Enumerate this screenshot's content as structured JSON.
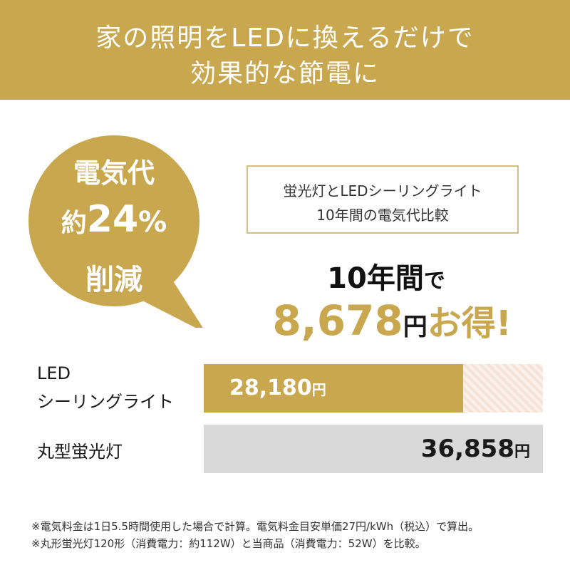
{
  "header": {
    "line1": "家の照明をLEDに換えるだけで",
    "line2": "効果的な節電に"
  },
  "badge": {
    "line1": "電気代",
    "line2_prefix": "約",
    "line2_number": "24",
    "line2_percent": "%",
    "line3": "削減"
  },
  "comparison": {
    "line1": "蛍光灯とLEDシーリングライト",
    "line2": "10年間の電気代比較"
  },
  "savings": {
    "period": "10年間",
    "particle": "で",
    "amount": "8,678",
    "currency": "円",
    "suffix": "お得!"
  },
  "chart_data": {
    "type": "bar",
    "categories": [
      "LED シーリングライト",
      "丸型蛍光灯"
    ],
    "values": [
      28180,
      36858
    ],
    "value_labels": [
      "28,180",
      "36,858"
    ],
    "unit": "円",
    "max": 36858
  },
  "bars": [
    {
      "label_line1": "LED",
      "label_line2": "シーリングライト",
      "value_text": "28,180",
      "unit": "円"
    },
    {
      "label_line1": "丸型蛍光灯",
      "value_text": "36,858",
      "unit": "円"
    }
  ],
  "footnotes": [
    "※電気料金は1日5.5時間使用した場合で計算。電気料金目安単価27円/kWh（税込）で算出。",
    "※丸形蛍光灯120形（消費電力：約112W）と当商品（消費電力：52W）を比較。"
  ],
  "colors": {
    "accent": "#c9a74e",
    "bar_alt": "#d9d9d9"
  }
}
